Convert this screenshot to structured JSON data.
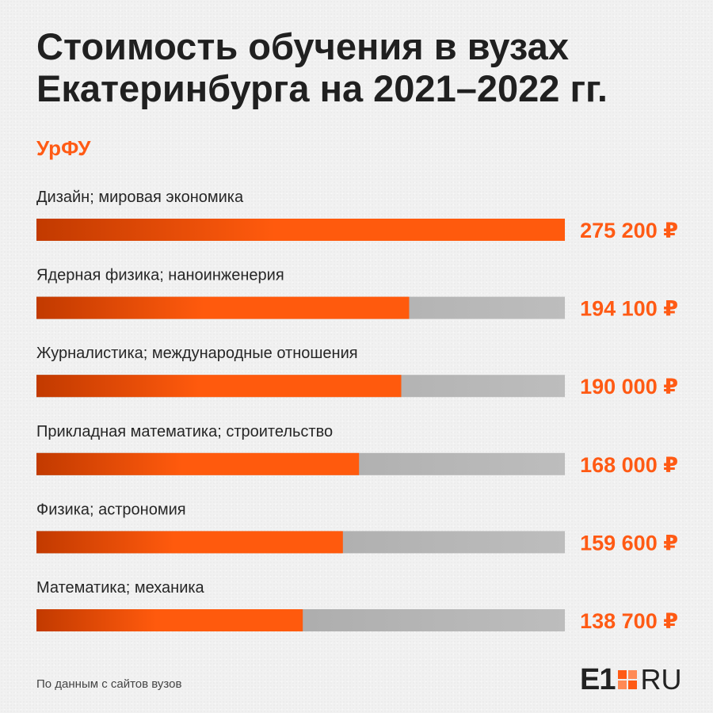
{
  "title_line1": "Стоимость обучения в вузах",
  "title_line2": "Екатеринбурга на 2021–2022 гг.",
  "university": "УрФУ",
  "source": "По данным с сайтов вузов",
  "logo": {
    "mark": "E1",
    "domain": "RU"
  },
  "colors": {
    "accent": "#ff5a14",
    "track": "#b5b5b5",
    "text": "#202020"
  },
  "chart_data": {
    "type": "bar",
    "orientation": "horizontal",
    "categories": [
      "Дизайн; мировая экономика",
      "Ядерная физика; наноинженерия",
      "Журналистика; международные отношения",
      "Прикладная математика; строительство",
      "Физика; астрономия",
      "Математика; механика"
    ],
    "values": [
      275200,
      194100,
      190000,
      168000,
      159600,
      138700
    ],
    "value_labels": [
      "275 200 ₽",
      "194 100 ₽",
      "190 000 ₽",
      "168 000 ₽",
      "159 600 ₽",
      "138 700 ₽"
    ],
    "title": "Стоимость обучения в вузах Екатеринбурга на 2021–2022 гг.",
    "xlim": [
      0,
      275200
    ],
    "grid": false,
    "legend": "none"
  }
}
